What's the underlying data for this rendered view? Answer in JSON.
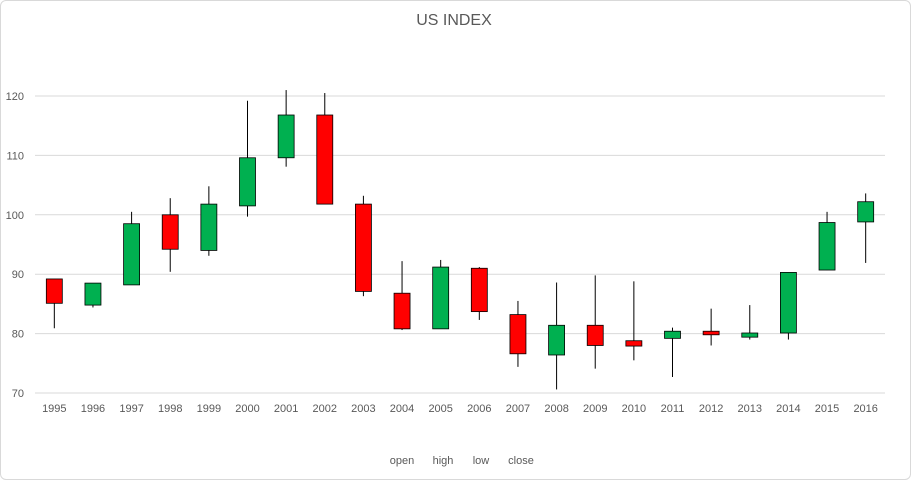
{
  "chart_data": {
    "type": "candlestick",
    "title": "US INDEX",
    "categories": [
      "1995",
      "1996",
      "1997",
      "1998",
      "1999",
      "2000",
      "2001",
      "2002",
      "2003",
      "2004",
      "2005",
      "2006",
      "2007",
      "2008",
      "2009",
      "2010",
      "2011",
      "2012",
      "2013",
      "2014",
      "2015",
      "2016"
    ],
    "open": [
      89.2,
      84.8,
      88.2,
      100.0,
      94.0,
      101.5,
      109.6,
      116.8,
      101.8,
      86.8,
      80.8,
      91.0,
      83.2,
      76.4,
      81.4,
      78.8,
      79.2,
      80.4,
      79.4,
      80.1,
      90.7,
      98.8
    ],
    "high": [
      89.2,
      88.5,
      100.5,
      102.8,
      104.8,
      119.2,
      121.0,
      120.5,
      103.2,
      92.2,
      92.4,
      91.2,
      85.5,
      88.6,
      89.8,
      88.8,
      81.0,
      84.2,
      84.8,
      90.3,
      100.5,
      103.6
    ],
    "low": [
      80.9,
      84.4,
      88.2,
      90.4,
      93.1,
      99.7,
      108.1,
      101.8,
      86.3,
      80.6,
      80.8,
      82.3,
      74.4,
      70.6,
      74.1,
      75.5,
      72.7,
      78.0,
      79.0,
      79.0,
      90.7,
      91.9
    ],
    "close": [
      85.1,
      88.5,
      98.5,
      94.2,
      101.8,
      109.6,
      116.8,
      101.8,
      87.1,
      80.8,
      91.2,
      83.7,
      76.6,
      81.4,
      78.0,
      77.9,
      80.4,
      79.8,
      80.1,
      90.3,
      98.7,
      102.2
    ],
    "up_color": "#00b050",
    "down_color": "#ff0000",
    "ylim": [
      70,
      120
    ],
    "yticks": [
      70,
      80,
      90,
      100,
      110,
      120
    ],
    "grid": true,
    "legend_entries": [
      "open",
      "high",
      "low",
      "close"
    ],
    "legend_position": "bottom"
  }
}
